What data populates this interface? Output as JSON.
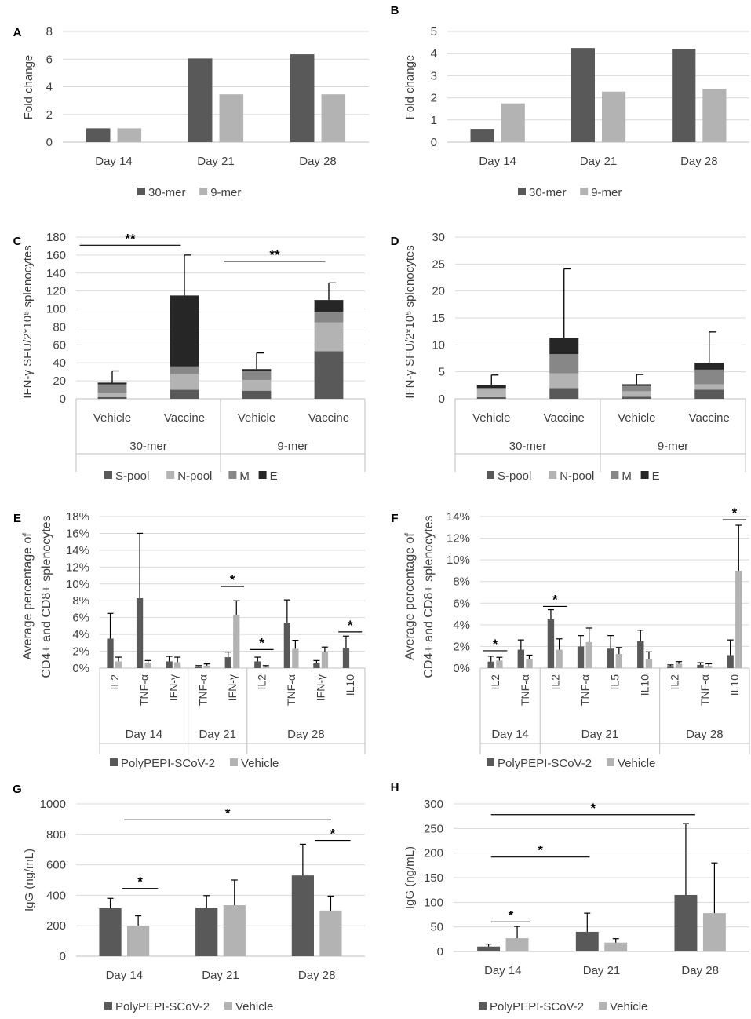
{
  "figure": {
    "colors": {
      "dark": "#595959",
      "light": "#b3b3b3",
      "mid": "#878787",
      "black": "#262626",
      "grid": "#d9d9d9",
      "axis": "#bfbfbf",
      "text": "#404040"
    }
  },
  "chart_data": [
    {
      "id": "A",
      "panel_label": "A",
      "type": "bar",
      "ylabel": "Fold change",
      "ylim": [
        0,
        8
      ],
      "yticks": [
        "0",
        "2",
        "4",
        "6",
        "8"
      ],
      "categories": [
        "Day 14",
        "Day 21",
        "Day 28"
      ],
      "series": [
        {
          "name": "30-mer",
          "color": "dark",
          "values": [
            1.0,
            6.05,
            6.35
          ]
        },
        {
          "name": "9-mer",
          "color": "light",
          "values": [
            1.0,
            3.45,
            3.45
          ]
        }
      ],
      "legend": [
        "30-mer",
        "9-mer"
      ],
      "legend_position": "bottom"
    },
    {
      "id": "B",
      "panel_label": "B",
      "type": "bar",
      "ylabel": "Fold change",
      "ylim": [
        0,
        5
      ],
      "yticks": [
        "0",
        "1",
        "2",
        "3",
        "4",
        "5"
      ],
      "categories": [
        "Day 14",
        "Day 21",
        "Day 28"
      ],
      "series": [
        {
          "name": "30-mer",
          "color": "dark",
          "values": [
            0.6,
            4.25,
            4.22
          ]
        },
        {
          "name": "9-mer",
          "color": "light",
          "values": [
            1.75,
            2.28,
            2.4
          ]
        }
      ],
      "legend": [
        "30-mer",
        "9-mer"
      ],
      "legend_position": "bottom"
    },
    {
      "id": "C",
      "panel_label": "C",
      "type": "stacked-bar",
      "ylabel": "IFN-γ SFU/2*10⁵ splenocytes",
      "ylim": [
        0,
        180
      ],
      "yticks": [
        "0",
        "20",
        "40",
        "60",
        "80",
        "100",
        "120",
        "140",
        "160",
        "180"
      ],
      "categories": [
        "Vehicle",
        "Vaccine",
        "Vehicle",
        "Vaccine"
      ],
      "groups": [
        {
          "label": "30-mer",
          "span": 2
        },
        {
          "label": "9-mer",
          "span": 2
        }
      ],
      "stack_series": [
        {
          "name": "S-pool",
          "color": "dark",
          "values": [
            2,
            10,
            9,
            53
          ]
        },
        {
          "name": "N-pool",
          "color": "light",
          "values": [
            5,
            18,
            12,
            32
          ]
        },
        {
          "name": "M",
          "color": "mid",
          "values": [
            9,
            8,
            10,
            12
          ]
        },
        {
          "name": "E",
          "color": "black",
          "values": [
            2,
            79,
            2,
            13
          ]
        }
      ],
      "error_top": [
        31,
        160,
        51,
        129
      ],
      "significance": [
        {
          "from": 0,
          "to": 1,
          "value": 171,
          "label": "**"
        },
        {
          "from": 2,
          "to": 3,
          "value": 153,
          "label": "**"
        }
      ],
      "legend": [
        "S-pool",
        "N-pool",
        "M",
        "E"
      ],
      "legend_position": "bottom"
    },
    {
      "id": "D",
      "panel_label": "D",
      "type": "stacked-bar",
      "ylabel": "IFN-γ SFU/2*10⁵ splenocytes",
      "ylim": [
        0,
        30
      ],
      "yticks": [
        "0",
        "5",
        "10",
        "15",
        "20",
        "25",
        "30"
      ],
      "categories": [
        "Vehicle",
        "Vaccine",
        "Vehicle",
        "Vaccine"
      ],
      "groups": [
        {
          "label": "30-mer",
          "span": 2
        },
        {
          "label": "9-mer",
          "span": 2
        }
      ],
      "stack_series": [
        {
          "name": "S-pool",
          "color": "dark",
          "values": [
            0.3,
            2.0,
            0.4,
            1.7
          ]
        },
        {
          "name": "N-pool",
          "color": "light",
          "values": [
            1.4,
            2.7,
            1.0,
            1.0
          ]
        },
        {
          "name": "M",
          "color": "mid",
          "values": [
            0.3,
            3.6,
            1.0,
            2.7
          ]
        },
        {
          "name": "E",
          "color": "black",
          "values": [
            0.6,
            3.0,
            0.3,
            1.3
          ]
        }
      ],
      "error_top": [
        4.4,
        24.1,
        4.5,
        12.4
      ],
      "significance": [],
      "legend": [
        "S-pool",
        "N-pool",
        "M",
        "E"
      ],
      "legend_position": "bottom"
    },
    {
      "id": "E",
      "panel_label": "E",
      "type": "bar",
      "ylabel": "Average percentage of CD4+ and CD8+ splenocytes",
      "ylim": [
        0,
        18
      ],
      "yticks": [
        "0%",
        "2%",
        "4%",
        "6%",
        "8%",
        "10%",
        "12%",
        "14%",
        "16%",
        "18%"
      ],
      "categories": [
        "IL2",
        "TNF-α",
        "IFN-γ",
        "TNF-α",
        "IFN-γ",
        "IL2",
        "TNF-α",
        "IFN-γ",
        "IL10"
      ],
      "groups": [
        {
          "label": "Day 14",
          "span": 3
        },
        {
          "label": "Day 21",
          "span": 2
        },
        {
          "label": "Day 28",
          "span": 4
        }
      ],
      "series": [
        {
          "name": "PolyPEPI-SCoV-2",
          "color": "dark",
          "values": [
            3.5,
            8.3,
            0.8,
            0.2,
            1.3,
            0.8,
            5.4,
            0.6,
            2.4
          ],
          "errors": [
            3.0,
            7.7,
            0.6,
            0.1,
            0.6,
            0.5,
            2.7,
            0.3,
            1.4
          ]
        },
        {
          "name": "Vehicle",
          "color": "light",
          "values": [
            0.8,
            0.6,
            0.7,
            0.3,
            6.3,
            0.2,
            2.3,
            1.9,
            0.0
          ],
          "errors": [
            0.5,
            0.3,
            0.6,
            0.2,
            1.7,
            0.1,
            1.0,
            0.6,
            0.0
          ]
        }
      ],
      "significance": [
        {
          "from": 4,
          "to": 4,
          "value": 9.7,
          "label": "*"
        },
        {
          "from": 5,
          "to": 5,
          "value": 2.2,
          "label": "*"
        },
        {
          "from": 8,
          "to": 8,
          "value": 4.3,
          "label": "*"
        }
      ],
      "legend": [
        "PolyPEPI-SCoV-2",
        "Vehicle"
      ],
      "legend_position": "bottom"
    },
    {
      "id": "F",
      "panel_label": "F",
      "type": "bar",
      "ylabel": "Average percentage of CD4+ and CD8+ splenocytes",
      "ylim": [
        0,
        14
      ],
      "yticks": [
        "0%",
        "2%",
        "4%",
        "6%",
        "8%",
        "10%",
        "12%",
        "14%"
      ],
      "categories": [
        "IL2",
        "TNF-α",
        "IL2",
        "TNF-α",
        "IL5",
        "IL10",
        "IL2",
        "TNF-α",
        "IL10"
      ],
      "groups": [
        {
          "label": "Day 14",
          "span": 2
        },
        {
          "label": "Day 21",
          "span": 4
        },
        {
          "label": "Day 28",
          "span": 3
        }
      ],
      "series": [
        {
          "name": "PolyPEPI-SCoV-2",
          "color": "dark",
          "values": [
            0.6,
            1.7,
            4.5,
            2.0,
            1.8,
            2.5,
            0.2,
            0.3,
            1.2
          ],
          "errors": [
            0.5,
            0.9,
            0.9,
            1.0,
            1.2,
            1.0,
            0.1,
            0.2,
            1.4
          ]
        },
        {
          "name": "Vehicle",
          "color": "light",
          "values": [
            0.7,
            0.8,
            1.7,
            2.4,
            1.3,
            0.8,
            0.4,
            0.2,
            9.0
          ],
          "errors": [
            0.3,
            0.4,
            1.0,
            1.3,
            0.6,
            0.7,
            0.2,
            0.2,
            4.2
          ]
        }
      ],
      "significance": [
        {
          "from": 0,
          "to": 0,
          "value": 1.6,
          "label": "*"
        },
        {
          "from": 2,
          "to": 2,
          "value": 5.7,
          "label": "*"
        },
        {
          "from": 8,
          "to": 8,
          "value": 13.7,
          "label": "*"
        }
      ],
      "legend": [
        "PolyPEPI-SCoV-2",
        "Vehicle"
      ],
      "legend_position": "bottom"
    },
    {
      "id": "G",
      "panel_label": "G",
      "type": "bar",
      "ylabel": "IgG (ng/mL)",
      "ylim": [
        0,
        1000
      ],
      "yticks": [
        "0",
        "200",
        "400",
        "600",
        "800",
        "1000"
      ],
      "categories": [
        "Day 14",
        "Day 21",
        "Day 28"
      ],
      "series": [
        {
          "name": "PolyPEPI-SCoV-2",
          "color": "dark",
          "values": [
            315,
            318,
            530
          ],
          "errors": [
            65,
            80,
            205
          ]
        },
        {
          "name": "Vehicle",
          "color": "light",
          "values": [
            200,
            335,
            300
          ],
          "errors": [
            65,
            165,
            95
          ]
        }
      ],
      "significance": [
        {
          "from": 0,
          "to": 0,
          "value": 895,
          "label": "*",
          "span": [
            0,
            4
          ]
        },
        {
          "from": 0,
          "to": 0,
          "value": 445,
          "label": "*",
          "span": [
            0.5,
            1
          ]
        },
        {
          "from": 2,
          "to": 2,
          "value": 760,
          "label": "*",
          "span": [
            0.5,
            1
          ]
        }
      ],
      "legend": [
        "PolyPEPI-SCoV-2",
        "Vehicle"
      ],
      "legend_position": "bottom"
    },
    {
      "id": "H",
      "panel_label": "H",
      "type": "bar",
      "ylabel": "IgG (ng/mL)",
      "ylim": [
        0,
        300
      ],
      "yticks": [
        "0",
        "50",
        "100",
        "150",
        "200",
        "250",
        "300"
      ],
      "categories": [
        "Day 14",
        "Day 21",
        "Day 28"
      ],
      "series": [
        {
          "name": "PolyPEPI-SCoV-2",
          "color": "dark",
          "values": [
            10,
            40,
            115
          ],
          "errors": [
            5,
            38,
            145
          ]
        },
        {
          "name": "Vehicle",
          "color": "light",
          "values": [
            27,
            18,
            78
          ],
          "errors": [
            24,
            8,
            102
          ]
        }
      ],
      "significance": [
        {
          "from": 0,
          "to": 0,
          "value": 278,
          "label": "*",
          "span": [
            0,
            2
          ]
        },
        {
          "from": 0,
          "to": 0,
          "value": 192,
          "label": "*",
          "span": [
            0,
            1
          ]
        },
        {
          "from": 0,
          "to": 0,
          "value": 60,
          "label": "*",
          "span": [
            0,
            0.5
          ]
        }
      ],
      "legend": [
        "PolyPEPI-SCoV-2",
        "Vehicle"
      ],
      "legend_position": "bottom"
    }
  ]
}
